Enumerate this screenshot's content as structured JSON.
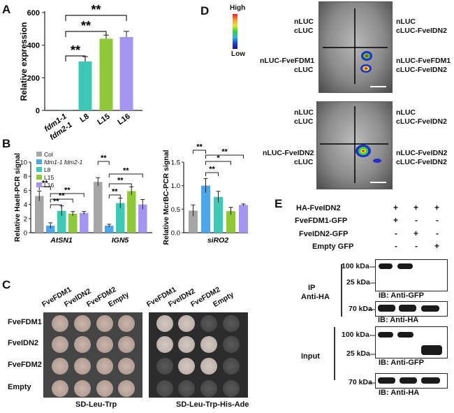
{
  "panels": {
    "A": "A",
    "B": "B",
    "C": "C",
    "D": "D",
    "E": "E"
  },
  "colors": {
    "col": "#a6a6a6",
    "fdm": "#4ea6e8",
    "l8": "#3ec9b6",
    "l15": "#8fc83a",
    "l16": "#a495f0"
  },
  "panelA": {
    "chart_data": {
      "type": "bar",
      "ylabel": "Relative expression",
      "ylim": [
        0,
        600
      ],
      "yticks": [
        "0",
        "200",
        "400",
        "600"
      ],
      "categories": [
        "fdm1-1 fdm2-1",
        "L8",
        "L15",
        "L16"
      ],
      "xlabel_1": "fdm1-1",
      "xlabel_2": "fdm2-1",
      "values": [
        1,
        300,
        440,
        450
      ],
      "errors": [
        0,
        30,
        22,
        35
      ],
      "sig": [
        "**",
        "**",
        "**"
      ]
    }
  },
  "panelB1": {
    "chart_data": {
      "type": "bar",
      "ylabel": "Relative HaeII-PCR signal",
      "ylim": [
        0,
        10
      ],
      "yticks": [
        "0",
        "2",
        "4",
        "6",
        "8",
        "10"
      ],
      "categories": [
        "AtSN1",
        "IGN5"
      ],
      "series": [
        {
          "name": "Col",
          "values": [
            5.2,
            7.2
          ],
          "errors": [
            0.7,
            0.6
          ]
        },
        {
          "name": "fdm1-1 fdm2-1",
          "values": [
            1.0,
            1.0
          ],
          "errors": [
            0.4,
            0.2
          ]
        },
        {
          "name": "L8",
          "values": [
            3.1,
            4.2
          ],
          "errors": [
            0.7,
            0.7
          ]
        },
        {
          "name": "L15",
          "values": [
            2.7,
            5.9
          ],
          "errors": [
            0.3,
            0.6
          ]
        },
        {
          "name": "L16",
          "values": [
            2.8,
            4.0
          ],
          "errors": [
            0.2,
            0.7
          ]
        }
      ],
      "sig": [
        "**",
        "**",
        "**",
        "**",
        "**",
        "**",
        "**",
        "**"
      ]
    }
  },
  "panelB2": {
    "chart_data": {
      "type": "bar",
      "ylabel": "Relative McrBC-PCR signal",
      "ylim": [
        0,
        1.5
      ],
      "yticks": [
        "0.0",
        "0.5",
        "1.0",
        "1.5"
      ],
      "categories": [
        "siRO2"
      ],
      "series": [
        {
          "name": "Col",
          "values": [
            0.47
          ],
          "errors": [
            0.12
          ]
        },
        {
          "name": "fdm1-1 fdm2-1",
          "values": [
            1.0
          ],
          "errors": [
            0.15
          ]
        },
        {
          "name": "L8",
          "values": [
            0.76
          ],
          "errors": [
            0.12
          ]
        },
        {
          "name": "L15",
          "values": [
            0.46
          ],
          "errors": [
            0.08
          ]
        },
        {
          "name": "L16",
          "values": [
            0.59
          ],
          "errors": [
            0.02
          ]
        }
      ],
      "sig": [
        "**",
        "**",
        "*",
        "**"
      ]
    }
  },
  "panelC": {
    "cols": [
      "FveFDM1",
      "FveIDN2",
      "FveFDM2",
      "Empty"
    ],
    "rows": [
      "FveFDM1",
      "FveIDN2",
      "FveFDM2",
      "Empty"
    ],
    "left_label": "SD-Leu-Trp",
    "right_label": "SD-Leu-Trp-His-Ade"
  },
  "panelD": {
    "scale_high": "High",
    "scale_low": "Low",
    "top": {
      "tl_1": "nLUC",
      "tl_2": "cLUC",
      "tr_1": "nLUC",
      "tr_2": "cLUC-FveIDN2",
      "bl_1": "nLUC-FveFDM1",
      "bl_2": "cLUC",
      "br_1": "nLUC-FveFDM1",
      "br_2": "cLUC-FveIDN2"
    },
    "bottom": {
      "tl_1": "nLUC",
      "tl_2": "cLUC",
      "tr_1": "nLUC",
      "tr_2": "cLUC-FveIDN2",
      "bl_1": "nLUC-FveIDN2",
      "bl_2": "cLUC",
      "br_1": "nLUC-FveIDN2",
      "br_2": "cLUC-FveIDN2"
    }
  },
  "panelE": {
    "rows": [
      {
        "label": "HA-FveIDN2",
        "marks": [
          "+",
          "+",
          "+"
        ]
      },
      {
        "label": "FveFDM1-GFP",
        "marks": [
          "+",
          "-",
          "-"
        ]
      },
      {
        "label": "FveIDN2-GFP",
        "marks": [
          "-",
          "+",
          "-"
        ]
      },
      {
        "label": "Empty GFP",
        "marks": [
          "-",
          "-",
          "+"
        ]
      }
    ],
    "ip_1": "IP",
    "ip_2": "Anti-HA",
    "input": "Input",
    "kda100": "100 kDa",
    "kda25": "25 kDa",
    "kda70": "70 kDa",
    "ib_gfp": "IB: Anti-GFP",
    "ib_ha": "IB: Anti-HA"
  }
}
